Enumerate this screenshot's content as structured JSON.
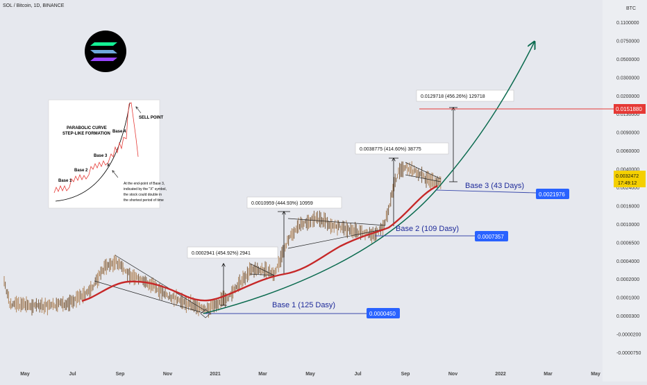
{
  "chart_data": {
    "type": "line",
    "symbol_title": "SOL / Bitcoin, 1D, BINANCE",
    "currency_label": "BTC",
    "scale": "log",
    "price_axis_ticks": [
      "0.1100000",
      "0.0750000",
      "0.0500000",
      "0.0300000",
      "0.0200000",
      "0.0130000",
      "0.0090000",
      "0.0060000",
      "0.0040000",
      "0.0024000",
      "0.0016000",
      "0.0010000",
      "0.0006500",
      "0.0004000",
      "0.0002000",
      "0.0001000",
      "0.0000300",
      "-0.0000200",
      "-0.0000750"
    ],
    "time_axis_ticks": [
      "May",
      "Jul",
      "Sep",
      "Nov",
      "2021",
      "Mar",
      "May",
      "Jul",
      "Sep",
      "Nov",
      "2022",
      "Mar",
      "May"
    ],
    "current_price": {
      "value": "0.0032472",
      "countdown": "17:49:12",
      "color": "#f5d000"
    },
    "target_line": {
      "value": "0.0151880",
      "color": "#e53935"
    },
    "measurements": [
      {
        "label": "0.0002941 (454.92%) 2941"
      },
      {
        "label": "0.0010959 (444.93%) 10959"
      },
      {
        "label": "0.0038775 (414.60%) 38775"
      },
      {
        "label": "0.0129718 (456.26%) 129718"
      }
    ],
    "bases": [
      {
        "label": "Base 1 (125 Dasy)",
        "price": "0.0000450"
      },
      {
        "label": "Base 2 (109 Dasy)",
        "price": "0.0007357"
      },
      {
        "label": "Base 3 (43 Days)",
        "price": "0.0021976"
      }
    ],
    "inset": {
      "title_line1": "PARABOLIC CURVE",
      "title_line2": "STEP-LIKE FORMATION",
      "sell": "SELL POINT",
      "base_labels": [
        "Base 1",
        "Base 2",
        "Base 3",
        "Base 4"
      ],
      "note_lines": [
        "At the end-point of Base 3,",
        "indicated by the \"X\" symbol,",
        "the stock could double in",
        "the shortest period of time"
      ]
    },
    "colors": {
      "moving_average": "#c62828",
      "parabola": "#0b6b4f",
      "tag": "#2962ff",
      "base_text": "#1e2a9a",
      "candles": "#7a5a3a"
    }
  }
}
